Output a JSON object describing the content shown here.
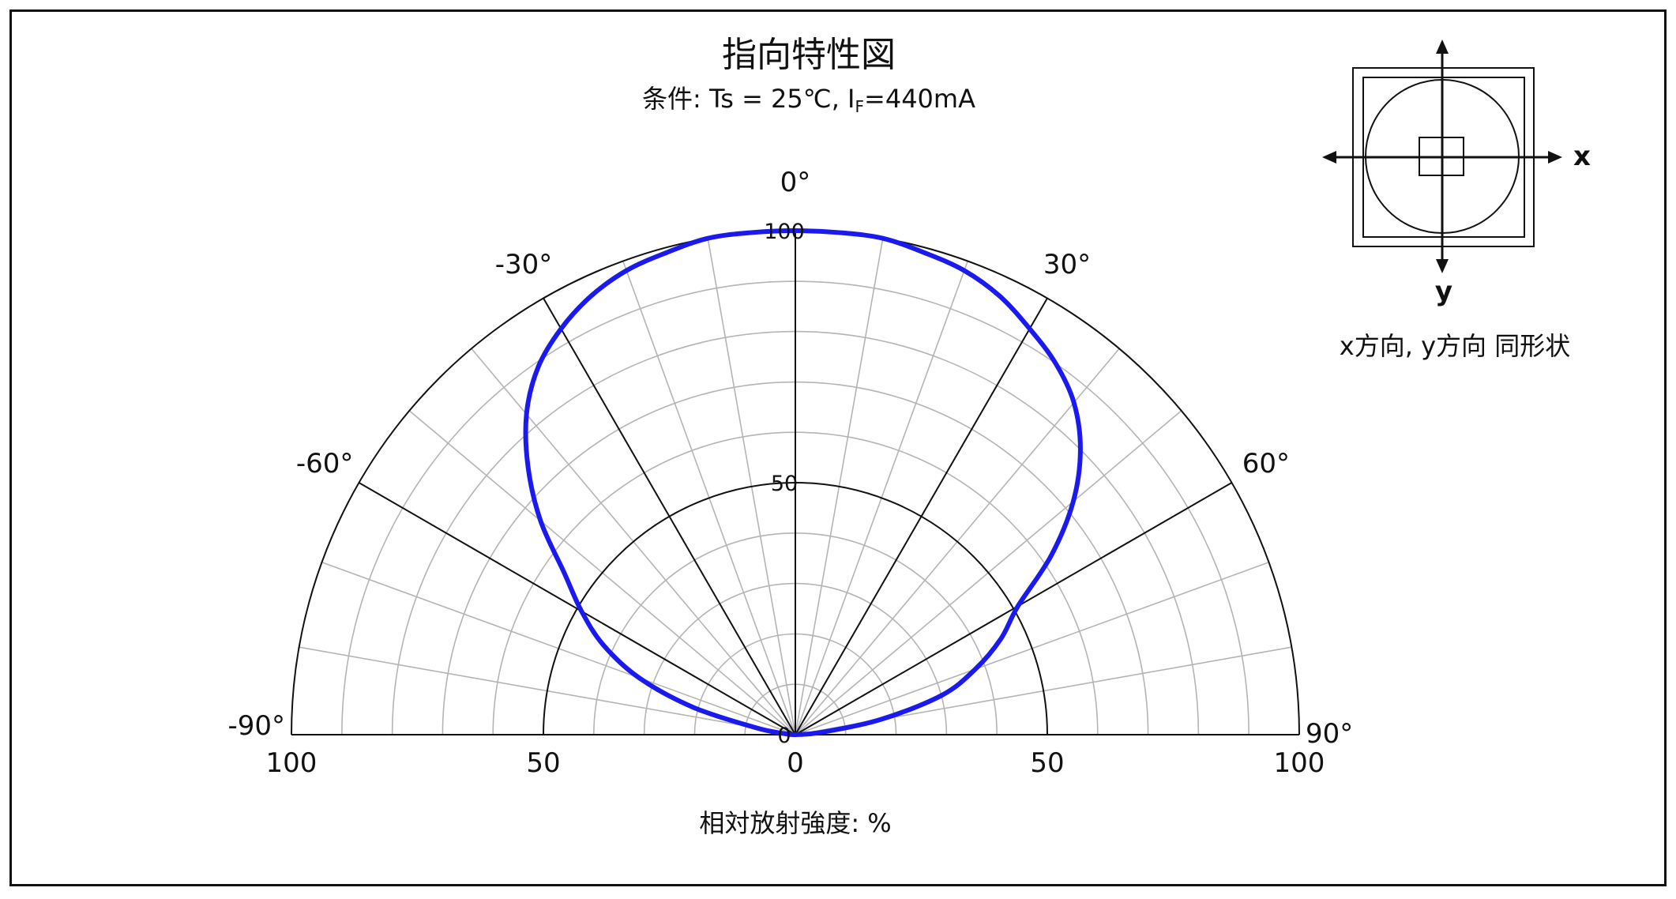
{
  "chart_data": {
    "type": "polar",
    "title": "指向特性図",
    "subtitle": {
      "prefix": "条件: Ts = 25℃, I",
      "subscript": "F",
      "suffix": "=440mA"
    },
    "angular_axis": {
      "range_deg": [
        -90,
        90
      ],
      "tick_labels": [
        {
          "angle": 0,
          "label": "0°"
        },
        {
          "angle": -30,
          "label": "-30°"
        },
        {
          "angle": 30,
          "label": "30°"
        },
        {
          "angle": -60,
          "label": "-60°"
        },
        {
          "angle": 60,
          "label": "60°"
        },
        {
          "angle": -90,
          "label": "-90°"
        },
        {
          "angle": 90,
          "label": "90°"
        }
      ],
      "major_step_deg": 30,
      "minor_step_deg": 10
    },
    "radial_axis": {
      "range": [
        0,
        100
      ],
      "major_ticks": [
        0,
        50,
        100
      ],
      "minor_step": 10,
      "ring_labels": [
        "0",
        "50",
        "100"
      ],
      "bottom_tick_labels": [
        "100",
        "50",
        "0",
        "50",
        "100"
      ]
    },
    "xlabel": "相対放射強度: %",
    "grid": true,
    "series": [
      {
        "color": "#1a1aee",
        "points": [
          {
            "angle": -90,
            "r": 0
          },
          {
            "angle": -85,
            "r": 2
          },
          {
            "angle": -80,
            "r": 8
          },
          {
            "angle": -75,
            "r": 21
          },
          {
            "angle": -70,
            "r": 33
          },
          {
            "angle": -65,
            "r": 42
          },
          {
            "angle": -60,
            "r": 49
          },
          {
            "angle": -55,
            "r": 56
          },
          {
            "angle": -50,
            "r": 66
          },
          {
            "angle": -45,
            "r": 75
          },
          {
            "angle": -40,
            "r": 83
          },
          {
            "angle": -35,
            "r": 89
          },
          {
            "angle": -30,
            "r": 93
          },
          {
            "angle": -25,
            "r": 96
          },
          {
            "angle": -20,
            "r": 98
          },
          {
            "angle": -15,
            "r": 99
          },
          {
            "angle": -10,
            "r": 100
          },
          {
            "angle": -5,
            "r": 100
          },
          {
            "angle": 0,
            "r": 100
          },
          {
            "angle": 5,
            "r": 100
          },
          {
            "angle": 10,
            "r": 100
          },
          {
            "angle": 15,
            "r": 99
          },
          {
            "angle": 20,
            "r": 98
          },
          {
            "angle": 25,
            "r": 96
          },
          {
            "angle": 30,
            "r": 93
          },
          {
            "angle": 35,
            "r": 90
          },
          {
            "angle": 40,
            "r": 86
          },
          {
            "angle": 45,
            "r": 80
          },
          {
            "angle": 50,
            "r": 72
          },
          {
            "angle": 55,
            "r": 62
          },
          {
            "angle": 60,
            "r": 51
          },
          {
            "angle": 65,
            "r": 45
          },
          {
            "angle": 70,
            "r": 38
          },
          {
            "angle": 75,
            "r": 30
          },
          {
            "angle": 80,
            "r": 17
          },
          {
            "angle": 85,
            "r": 5
          },
          {
            "angle": 90,
            "r": 0
          }
        ]
      }
    ]
  },
  "inset": {
    "x_label": "x",
    "y_label": "y",
    "note": "x方向, y方向  同形状"
  },
  "colors": {
    "series": "#1a1aee",
    "major_grid": "#111111",
    "minor_grid": "#b4b4b4"
  }
}
